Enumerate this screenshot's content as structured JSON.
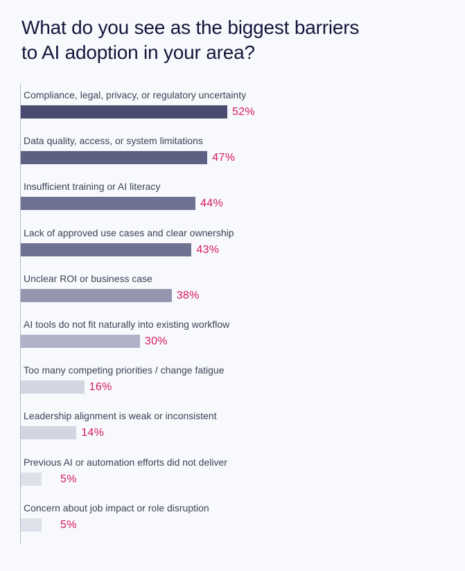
{
  "chart_data": {
    "type": "bar",
    "orientation": "horizontal",
    "title_lines": [
      "What do you see as the biggest barriers",
      "to AI adoption in your area?"
    ],
    "unit": "%",
    "xlim": [
      0,
      100
    ],
    "categories": [
      "Compliance, legal, privacy, or regulatory uncertainty",
      "Data quality, access, or system limitations",
      "Insufficient training or AI literacy",
      "Lack of approved use cases and clear ownership",
      "Unclear ROI or business case",
      "AI tools do not fit naturally into existing workflow",
      "Too many competing priorities / change fatigue",
      "Leadership alignment is weak or inconsistent",
      "Previous AI or automation efforts did not deliver",
      "Concern about job impact or role disruption"
    ],
    "values": [
      52,
      47,
      44,
      43,
      38,
      30,
      16,
      14,
      5,
      5
    ],
    "value_labels": [
      "52%",
      "47%",
      "44%",
      "43%",
      "38%",
      "30%",
      "16%",
      "14%",
      "5%",
      "5%"
    ],
    "bar_colors": [
      "#4a4c6f",
      "#5e6083",
      "#6f7190",
      "#6f7190",
      "#9596ad",
      "#b0b2c6",
      "#d3d5e0",
      "#d3d5e0",
      "#dfe1ea",
      "#dfe1ea"
    ],
    "value_color": "#d6175f",
    "grid": false,
    "legend": "none"
  }
}
